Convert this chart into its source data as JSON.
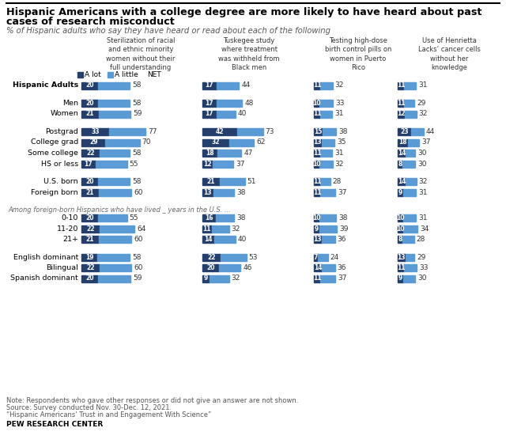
{
  "title_line1": "Hispanic Americans with a college degree are more likely to have heard about past",
  "title_line2": "cases of research misconduct",
  "subtitle": "% of Hispanic adults who say they have heard or read about each of the following",
  "col_headers": [
    "Sterilization of racial\nand ethnic minority\nwomen without their\nfull understanding",
    "Tuskegee study\nwhere treatment\nwas withheld from\nBlack men",
    "Testing high-dose\nbirth control pills on\nwomen in Puerto\nRico",
    "Use of Henrietta\nLacks’ cancer cells\nwithout her\nknowledge"
  ],
  "color_alot": "#243F6B",
  "color_alittle": "#5B9BD5",
  "rows": [
    {
      "label": "Hispanic Adults",
      "bold": true,
      "indent": 0,
      "alot": [
        20,
        17,
        11,
        11
      ],
      "net": [
        58,
        44,
        32,
        31
      ]
    },
    {
      "label": "Men",
      "bold": false,
      "indent": 1,
      "alot": [
        20,
        17,
        10,
        11
      ],
      "net": [
        58,
        48,
        33,
        29
      ]
    },
    {
      "label": "Women",
      "bold": false,
      "indent": 1,
      "alot": [
        21,
        17,
        11,
        12
      ],
      "net": [
        59,
        40,
        31,
        32
      ]
    },
    {
      "label": "Postgrad",
      "bold": false,
      "indent": 1,
      "alot": [
        33,
        42,
        15,
        23
      ],
      "net": [
        77,
        73,
        38,
        44
      ]
    },
    {
      "label": "College grad",
      "bold": false,
      "indent": 1,
      "alot": [
        29,
        32,
        13,
        18
      ],
      "net": [
        70,
        62,
        35,
        37
      ]
    },
    {
      "label": "Some college",
      "bold": false,
      "indent": 1,
      "alot": [
        22,
        18,
        11,
        14
      ],
      "net": [
        58,
        47,
        31,
        30
      ]
    },
    {
      "label": "HS or less",
      "bold": false,
      "indent": 1,
      "alot": [
        17,
        12,
        10,
        8
      ],
      "net": [
        55,
        37,
        32,
        30
      ]
    },
    {
      "label": "U.S. born",
      "bold": false,
      "indent": 0,
      "alot": [
        20,
        21,
        11,
        14
      ],
      "net": [
        58,
        51,
        28,
        32
      ]
    },
    {
      "label": "Foreign born",
      "bold": false,
      "indent": 0,
      "alot": [
        21,
        13,
        11,
        9
      ],
      "net": [
        60,
        38,
        37,
        31
      ]
    },
    {
      "label": "0-10",
      "bold": false,
      "indent": 1,
      "alot": [
        20,
        16,
        10,
        10
      ],
      "net": [
        55,
        38,
        38,
        31
      ]
    },
    {
      "label": "11-20",
      "bold": false,
      "indent": 1,
      "alot": [
        22,
        11,
        9,
        10
      ],
      "net": [
        64,
        32,
        39,
        34
      ]
    },
    {
      "label": "21+",
      "bold": false,
      "indent": 1,
      "alot": [
        21,
        14,
        13,
        8
      ],
      "net": [
        60,
        40,
        36,
        28
      ]
    },
    {
      "label": "English dominant",
      "bold": false,
      "indent": 0,
      "alot": [
        19,
        22,
        7,
        13
      ],
      "net": [
        58,
        53,
        24,
        29
      ]
    },
    {
      "label": "Bilingual",
      "bold": false,
      "indent": 0,
      "alot": [
        22,
        20,
        14,
        11
      ],
      "net": [
        60,
        46,
        36,
        33
      ]
    },
    {
      "label": "Spanish dominant",
      "bold": false,
      "indent": 0,
      "alot": [
        20,
        9,
        11,
        9
      ],
      "net": [
        59,
        32,
        37,
        30
      ]
    }
  ],
  "italic_text": "Among foreign-born Hispanics who have lived _ years in the U.S. ...",
  "note_lines": [
    "Note: Respondents who gave other responses or did not give an answer are not shown.",
    "Source: Survey conducted Nov. 30-Dec. 12, 2021.",
    "“Hispanic Americans’ Trust in and Engagement With Science”"
  ],
  "pew": "PEW RESEARCH CENTER"
}
